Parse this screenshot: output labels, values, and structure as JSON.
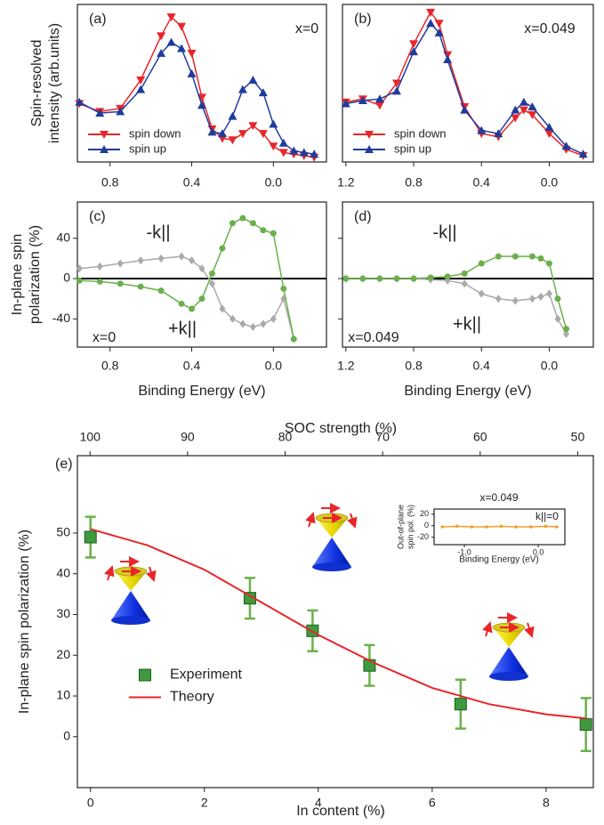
{
  "chart_data": [
    {
      "type": "line",
      "label": "(a)",
      "y_label": [
        "Spin-resolved",
        "intensity (arb.units)"
      ],
      "annotations": [
        {
          "text": "x=0",
          "color": "#000000"
        }
      ],
      "xlim": [
        0.96,
        -0.26
      ],
      "xticks": [
        0.8,
        0.4,
        {
          "value": 0,
          "label": "0.0"
        }
      ],
      "ylim": [
        0,
        100
      ],
      "legend": "lower left",
      "x": [
        0.95,
        0.85,
        0.75,
        0.65,
        0.55,
        0.5,
        0.45,
        0.4,
        0.35,
        0.3,
        0.25,
        0.2,
        0.15,
        0.1,
        0.05,
        0,
        -0.05,
        -0.1,
        -0.15,
        -0.2
      ],
      "series": [
        {
          "name": "spin down",
          "color": "#e8262a",
          "marker": "triangle-down",
          "line": true,
          "values": [
            37,
            32,
            34,
            52,
            80,
            92,
            86,
            69,
            41,
            21,
            15,
            14,
            18,
            23,
            18,
            10,
            6,
            5,
            4,
            3
          ]
        },
        {
          "name": "spin up",
          "color": "#1f3c9c",
          "marker": "triangle-up",
          "line": true,
          "values": [
            38,
            31,
            32,
            46,
            69,
            76,
            72,
            56,
            36,
            19,
            18,
            29,
            46,
            52,
            44,
            24,
            12,
            7,
            6,
            5
          ]
        }
      ]
    },
    {
      "type": "line",
      "label": "(b)",
      "annotations": [
        {
          "text": "x=0.049",
          "color": "#000000"
        }
      ],
      "xlim": [
        1.22,
        -0.26
      ],
      "xticks": [
        1.2,
        0.8,
        0.4,
        {
          "value": 0,
          "label": "0.0"
        }
      ],
      "ylim": [
        0,
        100
      ],
      "legend": "lower left",
      "x": [
        1.2,
        1.1,
        1.0,
        0.9,
        0.8,
        0.7,
        0.65,
        0.6,
        0.5,
        0.4,
        0.3,
        0.2,
        0.15,
        0.1,
        0,
        -0.1,
        -0.2
      ],
      "series": [
        {
          "name": "spin down",
          "color": "#e8262a",
          "marker": "triangle-down",
          "line": true,
          "values": [
            38,
            40,
            36,
            50,
            75,
            95,
            88,
            68,
            35,
            18,
            16,
            28,
            33,
            30,
            18,
            8,
            4
          ]
        },
        {
          "name": "spin up",
          "color": "#1f3c9c",
          "marker": "triangle-up",
          "line": true,
          "values": [
            37,
            39,
            40,
            45,
            70,
            88,
            82,
            65,
            33,
            20,
            18,
            33,
            38,
            35,
            22,
            10,
            5
          ]
        }
      ]
    },
    {
      "type": "line",
      "label": "(c)",
      "y_label": [
        "In-plane spin",
        "polarization (%)"
      ],
      "x_label": "Binding Energy  (eV)",
      "annotations": [
        {
          "text": "-k||",
          "color": "#6ab04c"
        },
        {
          "text": "+k||",
          "color": "#aaaaaa"
        },
        {
          "text": "x=0",
          "color": "#000000"
        }
      ],
      "xlim": [
        0.96,
        -0.26
      ],
      "xticks": [
        0.8,
        0.4,
        {
          "value": 0,
          "label": "0.0"
        }
      ],
      "ylim": [
        -68,
        76
      ],
      "yticks": [
        40,
        0,
        -40
      ],
      "zero_line": true,
      "x": [
        0.95,
        0.85,
        0.75,
        0.65,
        0.55,
        0.45,
        0.4,
        0.35,
        0.3,
        0.25,
        0.2,
        0.15,
        0.1,
        0.05,
        0,
        -0.05,
        -0.1
      ],
      "series": [
        {
          "color": "#aaaaaa",
          "marker": "diamond",
          "line": true,
          "values": [
            10,
            12,
            15,
            18,
            20,
            22,
            18,
            10,
            -5,
            -30,
            -40,
            -45,
            -48,
            -45,
            -40,
            -20,
            -60
          ]
        },
        {
          "color": "#6ab04c",
          "marker": "circle",
          "line": true,
          "values": [
            -2,
            -3,
            -5,
            -8,
            -12,
            -25,
            -30,
            -20,
            5,
            30,
            55,
            60,
            55,
            48,
            45,
            -10,
            -60
          ]
        }
      ]
    },
    {
      "type": "line",
      "label": "(d)",
      "x_label": "Binding Energy  (eV)",
      "annotations": [
        {
          "text": "-k||",
          "color": "#6ab04c"
        },
        {
          "text": "+k||",
          "color": "#aaaaaa"
        },
        {
          "text": "x=0.049",
          "color": "#000000"
        }
      ],
      "xlim": [
        1.22,
        -0.26
      ],
      "xticks": [
        1.2,
        0.8,
        0.4,
        {
          "value": 0,
          "label": "0.0"
        }
      ],
      "ylim": [
        -68,
        76
      ],
      "yticks": [
        40,
        0,
        -40
      ],
      "zero_line": true,
      "x": [
        1.2,
        1.1,
        1.0,
        0.9,
        0.8,
        0.7,
        0.6,
        0.5,
        0.4,
        0.3,
        0.2,
        0.1,
        0.05,
        0,
        -0.05,
        -0.1
      ],
      "series": [
        {
          "color": "#aaaaaa",
          "marker": "diamond",
          "line": true,
          "values": [
            0,
            0,
            0,
            0,
            0,
            -1,
            -2,
            -5,
            -15,
            -20,
            -22,
            -20,
            -18,
            -15,
            -40,
            -55
          ]
        },
        {
          "color": "#6ab04c",
          "marker": "circle",
          "line": true,
          "values": [
            0,
            0,
            0,
            0,
            0,
            1,
            2,
            5,
            15,
            22,
            22,
            22,
            20,
            15,
            -20,
            -50
          ]
        }
      ]
    },
    {
      "type": "scatter",
      "label": "(e)",
      "y_label": "In-plane spin polarization (%)",
      "x_label": "In content (%)",
      "x2_label": "SOC strength (%)",
      "xlim": [
        -0.23,
        8.83
      ],
      "xticks": [
        0,
        2,
        4,
        6,
        8
      ],
      "x2lim": [
        101.3,
        48.4
      ],
      "x2ticks": [
        100,
        90,
        80,
        70,
        60,
        50
      ],
      "ylim": [
        -12.5,
        69
      ],
      "yticks": [
        0,
        10,
        20,
        30,
        40,
        50
      ],
      "legend": "center left",
      "series": [
        {
          "name": "Experiment",
          "color": "#3f9a3f",
          "error_color": "#6ab04c",
          "marker": "square",
          "x": [
            0,
            2.8,
            3.9,
            4.9,
            6.5,
            8.7
          ],
          "values": [
            49,
            34,
            26,
            17.5,
            8,
            3
          ],
          "errors": [
            5,
            5,
            5,
            5,
            6,
            6.5
          ]
        },
        {
          "name": "Theory",
          "color": "#e8262a",
          "line": true,
          "x": [
            0,
            1,
            2,
            3,
            4,
            5,
            6,
            7,
            8,
            8.7
          ],
          "values": [
            51,
            47,
            41,
            33,
            25,
            18,
            12,
            8,
            5.5,
            4.5
          ]
        }
      ]
    },
    {
      "type": "line",
      "y_label": [
        "Out-of-plane",
        "spin pol. (%)"
      ],
      "x_label": "Binding Energy (eV)",
      "annotations": [
        {
          "text": "x=0.049",
          "color": "#000000"
        },
        {
          "text": "k||=0",
          "color": "#f0a030"
        }
      ],
      "xlim": [
        -1.41,
        0.36
      ],
      "xticks": [
        {
          "value": -1,
          "label": "-1.0"
        },
        {
          "value": 0,
          "label": "0.0"
        }
      ],
      "ylim": [
        -33,
        29
      ],
      "yticks": [
        20,
        0,
        -20
      ],
      "x": [
        -1.3,
        -1.1,
        -0.9,
        -0.7,
        -0.5,
        -0.3,
        -0.1,
        0.1,
        0.25
      ],
      "series": [
        {
          "color": "#f0a030",
          "marker": "circle",
          "line": true,
          "values": [
            -2,
            -1,
            -2,
            -2,
            -1,
            -2,
            -2,
            -1,
            -2
          ]
        }
      ]
    }
  ]
}
